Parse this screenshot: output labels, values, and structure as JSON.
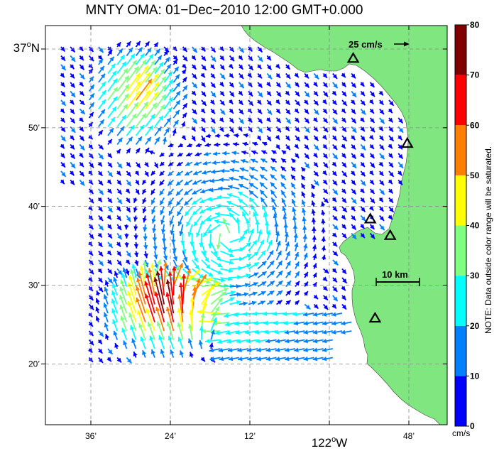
{
  "title": "MNTY OMA: 01−Dec−2010 12:00 GMT+0.000",
  "lat_axis": {
    "ticks": [
      {
        "label": "37",
        "sup": "o",
        "suffix": "N",
        "big": true,
        "lat": 37.0
      },
      {
        "label": "50’",
        "lat": 36.8333
      },
      {
        "label": "40’",
        "lat": 36.6667
      },
      {
        "label": "30’",
        "lat": 36.5
      },
      {
        "label": "20’",
        "lat": 36.3333
      }
    ]
  },
  "lon_axis": {
    "ticks": [
      {
        "label": "36’",
        "lon": -122.6
      },
      {
        "label": "24’",
        "lon": -122.4
      },
      {
        "label": "12’",
        "lon": -122.2
      },
      {
        "label": "122",
        "sup": "o",
        "suffix": "W",
        "big": true,
        "lon": -122.0
      },
      {
        "label": "48’",
        "lon": -121.8
      }
    ]
  },
  "scale_vector": {
    "label": "25 cm/s",
    "speed_cm_s": 25
  },
  "distance_scale": {
    "label": "10 km",
    "km": 10
  },
  "colorbar": {
    "min": 0,
    "max": 80,
    "unit": "cm/s",
    "ticks": [
      "0",
      "10",
      "20",
      "30",
      "40",
      "50",
      "60",
      "70",
      "80"
    ],
    "colors": [
      "#0000ff",
      "#0080ff",
      "#00ffff",
      "#80ff80",
      "#ffff00",
      "#ff8000",
      "#ff0000",
      "#800000"
    ],
    "note": "NOTE: Data outside color range will be saturated."
  },
  "land_color": "#80e680",
  "stations": [
    {
      "name": "station-1",
      "lon": -121.94,
      "lat": 36.98
    },
    {
      "name": "station-2",
      "lon": -121.804,
      "lat": 36.8
    },
    {
      "name": "station-3",
      "lon": -121.897,
      "lat": 36.64
    },
    {
      "name": "station-4",
      "lon": -121.847,
      "lat": 36.605
    },
    {
      "name": "station-5",
      "lon": -121.885,
      "lat": 36.43
    }
  ],
  "map_data": {
    "type": "vector-field",
    "description_units": "surface current speed in cm/s",
    "speed_regions": [
      {
        "name": "northwest-jet",
        "speed_range": [
          30,
          60
        ]
      },
      {
        "name": "southwest-jet",
        "speed_range": [
          50,
          75
        ]
      },
      {
        "name": "central-gyre",
        "speed_range": [
          15,
          35
        ]
      },
      {
        "name": "inner-bay",
        "speed_range": [
          3,
          12
        ]
      }
    ]
  }
}
